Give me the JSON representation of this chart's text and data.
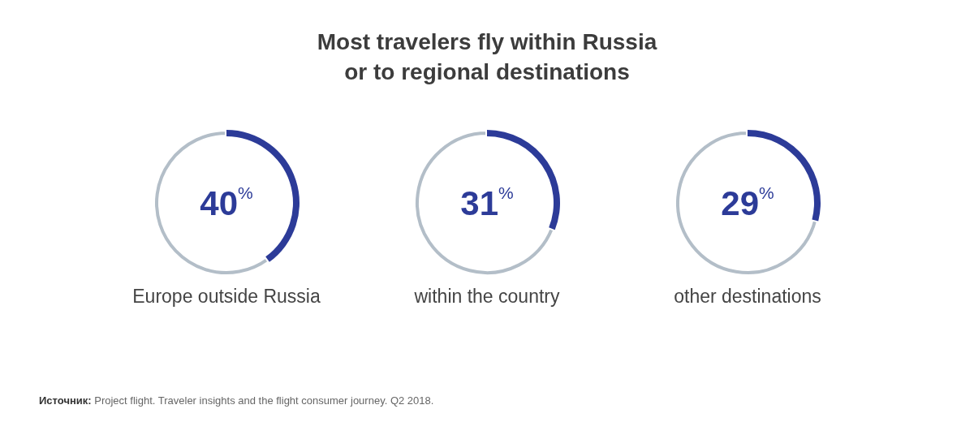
{
  "chart_data": [
    {
      "type": "other",
      "title": "Most travelers fly within Russia\nor to regional destinations",
      "annotations": [
        "Источник: Project flight. Traveler insights and the flight consumer journey. Q2 2018."
      ]
    },
    {
      "type": "donut",
      "title": "Europe outside Russia",
      "categories": [
        null,
        null
      ],
      "values": [
        40,
        60
      ],
      "colors": [
        "#2c3b98",
        "#b3bec8"
      ],
      "annotations": [
        "40$^{%}$"
      ]
    },
    {
      "type": "donut",
      "title": "within the country",
      "categories": [
        null,
        null
      ],
      "values": [
        31,
        69
      ],
      "colors": [
        "#2c3b98",
        "#b3bec8"
      ],
      "annotations": [
        "31$^{%}$"
      ]
    },
    {
      "type": "donut",
      "title": "other destinations",
      "categories": [
        null,
        null
      ],
      "values": [
        29,
        71
      ],
      "colors": [
        "#2c3b98",
        "#b3bec8"
      ],
      "annotations": [
        "29$^{%}$"
      ]
    }
  ]
}
